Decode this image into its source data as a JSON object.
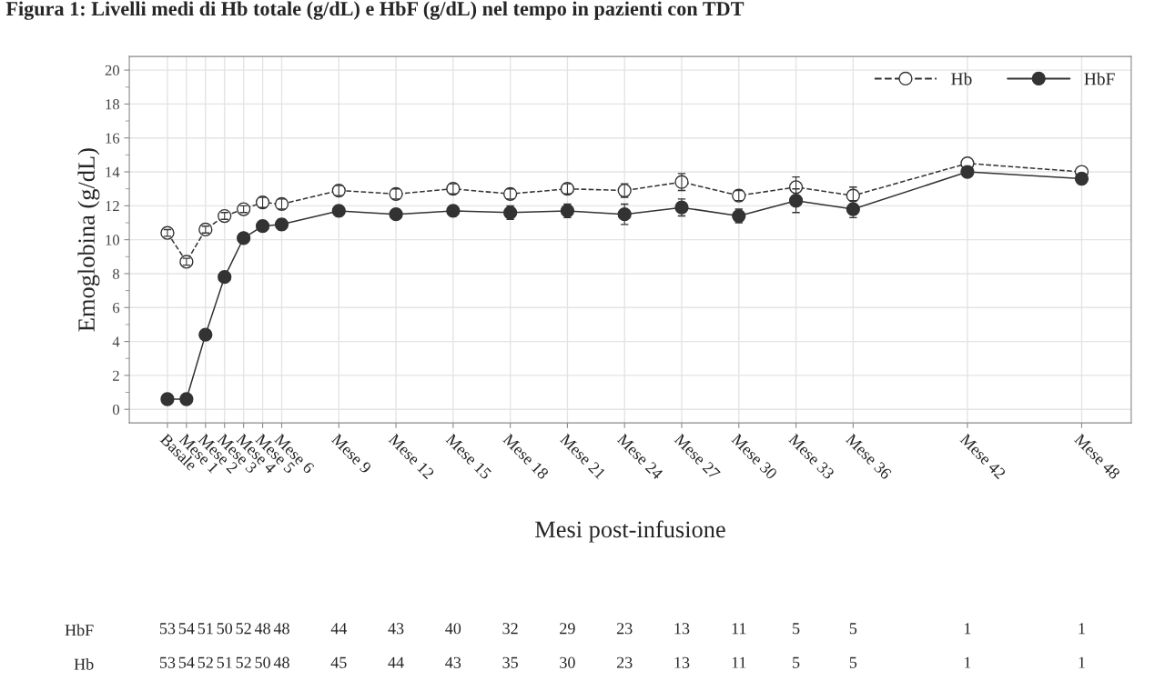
{
  "chart_data": [
    {
      "type": "line",
      "title": "Figura 1: Livelli medi di Hb totale (g/dL) e HbF (g/dL) nel tempo in pazienti con TDT",
      "xlabel": "Mesi post-infusione",
      "ylabel": "Emoglobina (g/dL)",
      "categories": [
        "Basale",
        "Mese 1",
        "Mese 2",
        "Mese 3",
        "Mese 4",
        "Mese 5",
        "Mese 6",
        null,
        null,
        "Mese 9",
        null,
        null,
        "Mese 12",
        null,
        null,
        "Mese 15",
        null,
        null,
        "Mese 18",
        null,
        null,
        "Mese 21",
        null,
        null,
        "Mese 24",
        null,
        null,
        "Mese 27",
        null,
        null,
        "Mese 30",
        null,
        null,
        "Mese 33",
        null,
        null,
        "Mese 36",
        null,
        null,
        null,
        null,
        null,
        "Mese 42",
        null,
        null,
        null,
        null,
        null,
        "Mese 48"
      ],
      "ylim": [
        -0.8,
        20.8
      ],
      "yticks": [
        0,
        2,
        4,
        6,
        8,
        10,
        12,
        14,
        16,
        18,
        20
      ],
      "grid": true,
      "legend": "top right",
      "marker": "circle",
      "series": [
        {
          "name": "Hb",
          "color": "#333333",
          "line_style": "dashed",
          "values": [
            10.4,
            8.7,
            10.6,
            11.4,
            11.8,
            12.2,
            12.1,
            null,
            null,
            12.9,
            null,
            null,
            12.7,
            null,
            null,
            13.0,
            null,
            null,
            12.7,
            null,
            null,
            13.0,
            null,
            null,
            12.9,
            null,
            null,
            13.4,
            null,
            null,
            12.6,
            null,
            null,
            13.1,
            null,
            null,
            12.6,
            null,
            null,
            null,
            null,
            null,
            14.5,
            null,
            null,
            null,
            null,
            null,
            14.0
          ],
          "errors": [
            0.2,
            0.2,
            0.2,
            0.2,
            0.2,
            0.3,
            0.3,
            null,
            null,
            0.3,
            null,
            null,
            0.3,
            null,
            null,
            0.3,
            null,
            null,
            0.3,
            null,
            null,
            0.3,
            null,
            null,
            0.4,
            null,
            null,
            0.5,
            null,
            null,
            0.3,
            null,
            null,
            0.6,
            null,
            null,
            0.5,
            null,
            null,
            null,
            null,
            null,
            null,
            null,
            null,
            null,
            null,
            null,
            null
          ]
        },
        {
          "name": "HbF",
          "color": "#333333",
          "line_style": "solid",
          "values": [
            0.6,
            0.6,
            4.4,
            7.8,
            10.1,
            10.8,
            10.9,
            null,
            null,
            11.7,
            null,
            null,
            11.5,
            null,
            null,
            11.7,
            null,
            null,
            11.6,
            null,
            null,
            11.7,
            null,
            null,
            11.5,
            null,
            null,
            11.9,
            null,
            null,
            11.4,
            null,
            null,
            12.3,
            null,
            null,
            11.8,
            null,
            null,
            null,
            null,
            null,
            14.0,
            null,
            null,
            null,
            null,
            null,
            13.6
          ],
          "errors": [
            null,
            null,
            0.2,
            0.3,
            0.2,
            0.3,
            0.3,
            null,
            null,
            0.3,
            null,
            null,
            0.3,
            null,
            null,
            0.3,
            null,
            null,
            0.4,
            null,
            null,
            0.4,
            null,
            null,
            0.6,
            null,
            null,
            0.5,
            null,
            null,
            0.4,
            null,
            null,
            0.7,
            null,
            null,
            0.5,
            null,
            null,
            null,
            null,
            null,
            null,
            null,
            null,
            null,
            null,
            null,
            null
          ]
        }
      ]
    },
    {
      "type": "heatmap",
      "data_labels": true,
      "categories": [
        null,
        null,
        null,
        null,
        null,
        null,
        null,
        null,
        null,
        null,
        null,
        null,
        null,
        null,
        null,
        null,
        null,
        null,
        null,
        null,
        null,
        null,
        null,
        null,
        null,
        null,
        null,
        null,
        null,
        null,
        null,
        null,
        null,
        null,
        null,
        null,
        null,
        null,
        null,
        null,
        null,
        null,
        null,
        null,
        null,
        null,
        null,
        null,
        null
      ],
      "y_categories": [
        "HbF",
        "Hb"
      ],
      "cells": [
        [
          53,
          54,
          51,
          50,
          52,
          48,
          48,
          null,
          null,
          44,
          null,
          null,
          43,
          null,
          null,
          40,
          null,
          null,
          32,
          null,
          null,
          29,
          null,
          null,
          23,
          null,
          null,
          13,
          null,
          null,
          11,
          null,
          null,
          5,
          null,
          null,
          5,
          null,
          null,
          null,
          null,
          null,
          1,
          null,
          null,
          null,
          null,
          null,
          1
        ],
        [
          53,
          54,
          52,
          51,
          52,
          50,
          48,
          null,
          null,
          45,
          null,
          null,
          44,
          null,
          null,
          43,
          null,
          null,
          35,
          null,
          null,
          30,
          null,
          null,
          23,
          null,
          null,
          13,
          null,
          null,
          11,
          null,
          null,
          5,
          null,
          null,
          5,
          null,
          null,
          null,
          null,
          null,
          1,
          null,
          null,
          null,
          null,
          null,
          1
        ]
      ]
    }
  ]
}
